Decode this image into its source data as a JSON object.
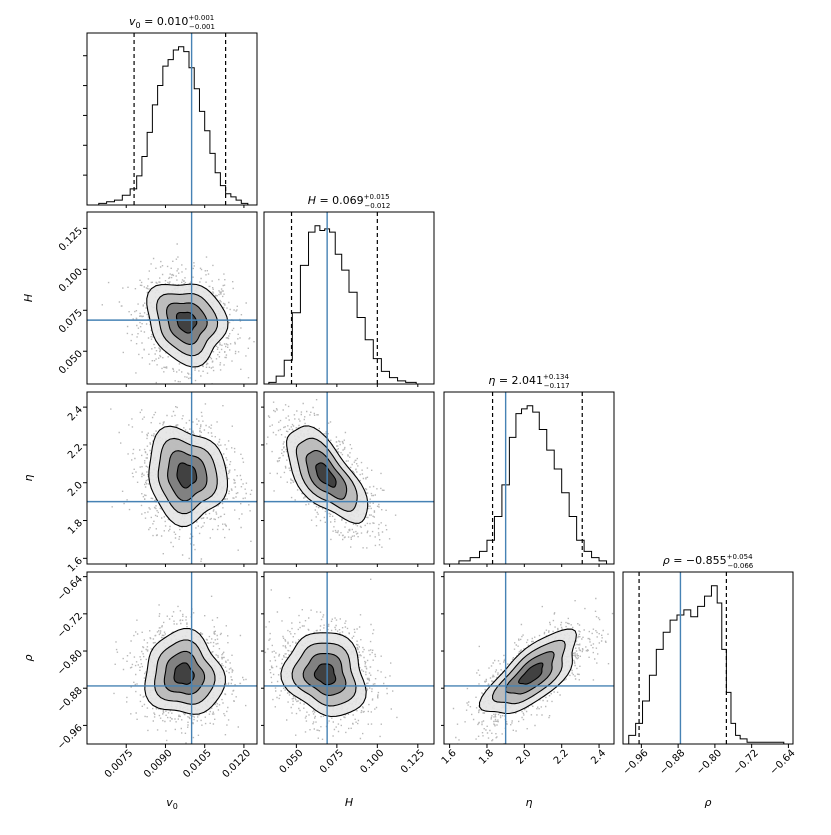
{
  "chart_data": {
    "type": "corner",
    "truth_color": "#4682b4",
    "quantile_color": "#000000",
    "params": [
      {
        "symbol": "v",
        "subscript": "0",
        "xlabel": "v₀",
        "range": [
          0.006,
          0.0125
        ],
        "ticks": [
          0.0075,
          0.009,
          0.0105,
          0.012
        ],
        "tick_labels": [
          "0.0075",
          "0.0090",
          "0.0105",
          "0.0120"
        ],
        "truth": 0.01,
        "q_low": 0.0078,
        "q_high": 0.0113,
        "title_prefix": "v",
        "title_sub": "0",
        "title_value": " = 0.010",
        "title_plus": "+0.001",
        "title_minus": "−0.001",
        "hist_x": [
          0.0063,
          0.0066,
          0.0069,
          0.0072,
          0.0075,
          0.0078,
          0.008,
          0.0082,
          0.0084,
          0.0086,
          0.0088,
          0.009,
          0.0092,
          0.0094,
          0.0096,
          0.0098,
          0.01,
          0.0102,
          0.0104,
          0.0106,
          0.0108,
          0.011,
          0.0112,
          0.0114,
          0.0116,
          0.0118,
          0.012,
          0.0123
        ],
        "hist_y": [
          0.0,
          0.01,
          0.02,
          0.03,
          0.06,
          0.1,
          0.18,
          0.3,
          0.45,
          0.62,
          0.74,
          0.86,
          0.9,
          0.96,
          0.98,
          0.95,
          0.85,
          0.72,
          0.58,
          0.46,
          0.32,
          0.2,
          0.12,
          0.07,
          0.05,
          0.03,
          0.01,
          0.0
        ]
      },
      {
        "symbol": "H",
        "subscript": "",
        "xlabel": "H",
        "range": [
          0.03,
          0.135
        ],
        "ticks": [
          0.05,
          0.075,
          0.1,
          0.125
        ],
        "tick_labels": [
          "0.050",
          "0.075",
          "0.100",
          "0.125"
        ],
        "truth": 0.069,
        "q_low": 0.047,
        "q_high": 0.1,
        "title_prefix": "H",
        "title_sub": "",
        "title_value": " = 0.069",
        "title_plus": "+0.015",
        "title_minus": "−0.012",
        "hist_x": [
          0.031,
          0.035,
          0.04,
          0.045,
          0.05,
          0.055,
          0.06,
          0.063,
          0.066,
          0.069,
          0.072,
          0.076,
          0.08,
          0.085,
          0.09,
          0.095,
          0.1,
          0.105,
          0.11,
          0.115,
          0.12,
          0.128
        ],
        "hist_y": [
          0.0,
          0.01,
          0.05,
          0.15,
          0.45,
          0.75,
          0.96,
          1.0,
          0.97,
          0.98,
          0.96,
          0.82,
          0.72,
          0.58,
          0.42,
          0.28,
          0.16,
          0.08,
          0.04,
          0.02,
          0.01,
          0.0
        ]
      },
      {
        "symbol": "η",
        "subscript": "",
        "xlabel": "η",
        "range": [
          1.57,
          2.48
        ],
        "ticks": [
          1.6,
          1.8,
          2.0,
          2.2,
          2.4
        ],
        "tick_labels": [
          "1.6",
          "1.8",
          "2.0",
          "2.2",
          "2.4"
        ],
        "truth": 1.9,
        "q_low": 1.83,
        "q_high": 2.31,
        "title_prefix": "η",
        "title_sub": "",
        "title_value": " = 2.041",
        "title_plus": "+0.134",
        "title_minus": "−0.117",
        "hist_x": [
          1.62,
          1.68,
          1.74,
          1.78,
          1.82,
          1.86,
          1.9,
          1.94,
          1.97,
          2.0,
          2.03,
          2.06,
          2.1,
          2.14,
          2.18,
          2.22,
          2.26,
          2.3,
          2.34,
          2.38,
          2.42,
          2.46
        ],
        "hist_y": [
          0.0,
          0.02,
          0.04,
          0.08,
          0.15,
          0.3,
          0.5,
          0.8,
          0.95,
          0.98,
          1.0,
          0.96,
          0.85,
          0.72,
          0.6,
          0.45,
          0.3,
          0.15,
          0.08,
          0.04,
          0.02,
          0.0
        ]
      },
      {
        "symbol": "ρ",
        "subscript": "",
        "xlabel": "ρ",
        "range": [
          -1.0,
          -0.63
        ],
        "ticks": [
          -0.96,
          -0.88,
          -0.8,
          -0.72,
          -0.64
        ],
        "tick_labels": [
          "−0.96",
          "−0.88",
          "−0.80",
          "−0.72",
          "−0.64"
        ],
        "truth": -0.875,
        "q_low": -0.965,
        "q_high": -0.775,
        "title_prefix": "ρ",
        "title_sub": "",
        "title_value": " = −0.855",
        "title_plus": "+0.054",
        "title_minus": "−0.066",
        "hist_x": [
          -0.995,
          -0.98,
          -0.965,
          -0.95,
          -0.935,
          -0.92,
          -0.905,
          -0.89,
          -0.875,
          -0.86,
          -0.845,
          -0.83,
          -0.815,
          -0.8,
          -0.79,
          -0.78,
          -0.77,
          -0.76,
          -0.75,
          -0.74,
          -0.72,
          -0.7,
          -0.68,
          -0.66,
          -0.64
        ],
        "hist_y": [
          0.0,
          0.05,
          0.12,
          0.25,
          0.4,
          0.55,
          0.65,
          0.72,
          0.75,
          0.78,
          0.74,
          0.8,
          0.86,
          0.92,
          0.82,
          0.55,
          0.3,
          0.12,
          0.05,
          0.03,
          0.01,
          0.01,
          0.01,
          0.01,
          0.0
        ]
      }
    ],
    "pairs": [
      {
        "row": 1,
        "col": 0,
        "cx": 0.0098,
        "cy": 0.068,
        "sx": 0.00075,
        "sy": 0.0125,
        "corr": -0.15
      },
      {
        "row": 2,
        "col": 0,
        "cx": 0.0098,
        "cy": 2.04,
        "sx": 0.00075,
        "sy": 0.125,
        "corr": -0.1
      },
      {
        "row": 2,
        "col": 1,
        "cx": 0.068,
        "cy": 2.04,
        "sx": 0.0125,
        "sy": 0.125,
        "corr": -0.65
      },
      {
        "row": 3,
        "col": 0,
        "cx": 0.0097,
        "cy": -0.85,
        "sx": 0.00075,
        "sy": 0.045,
        "corr": -0.05
      },
      {
        "row": 3,
        "col": 1,
        "cx": 0.068,
        "cy": -0.85,
        "sx": 0.0125,
        "sy": 0.045,
        "corr": -0.15
      },
      {
        "row": 3,
        "col": 2,
        "cx": 2.04,
        "cy": -0.85,
        "sx": 0.125,
        "sy": 0.045,
        "corr": 0.7
      }
    ],
    "contour_levels_sigma": [
      0.5,
      1.0,
      1.5,
      2.0
    ]
  }
}
